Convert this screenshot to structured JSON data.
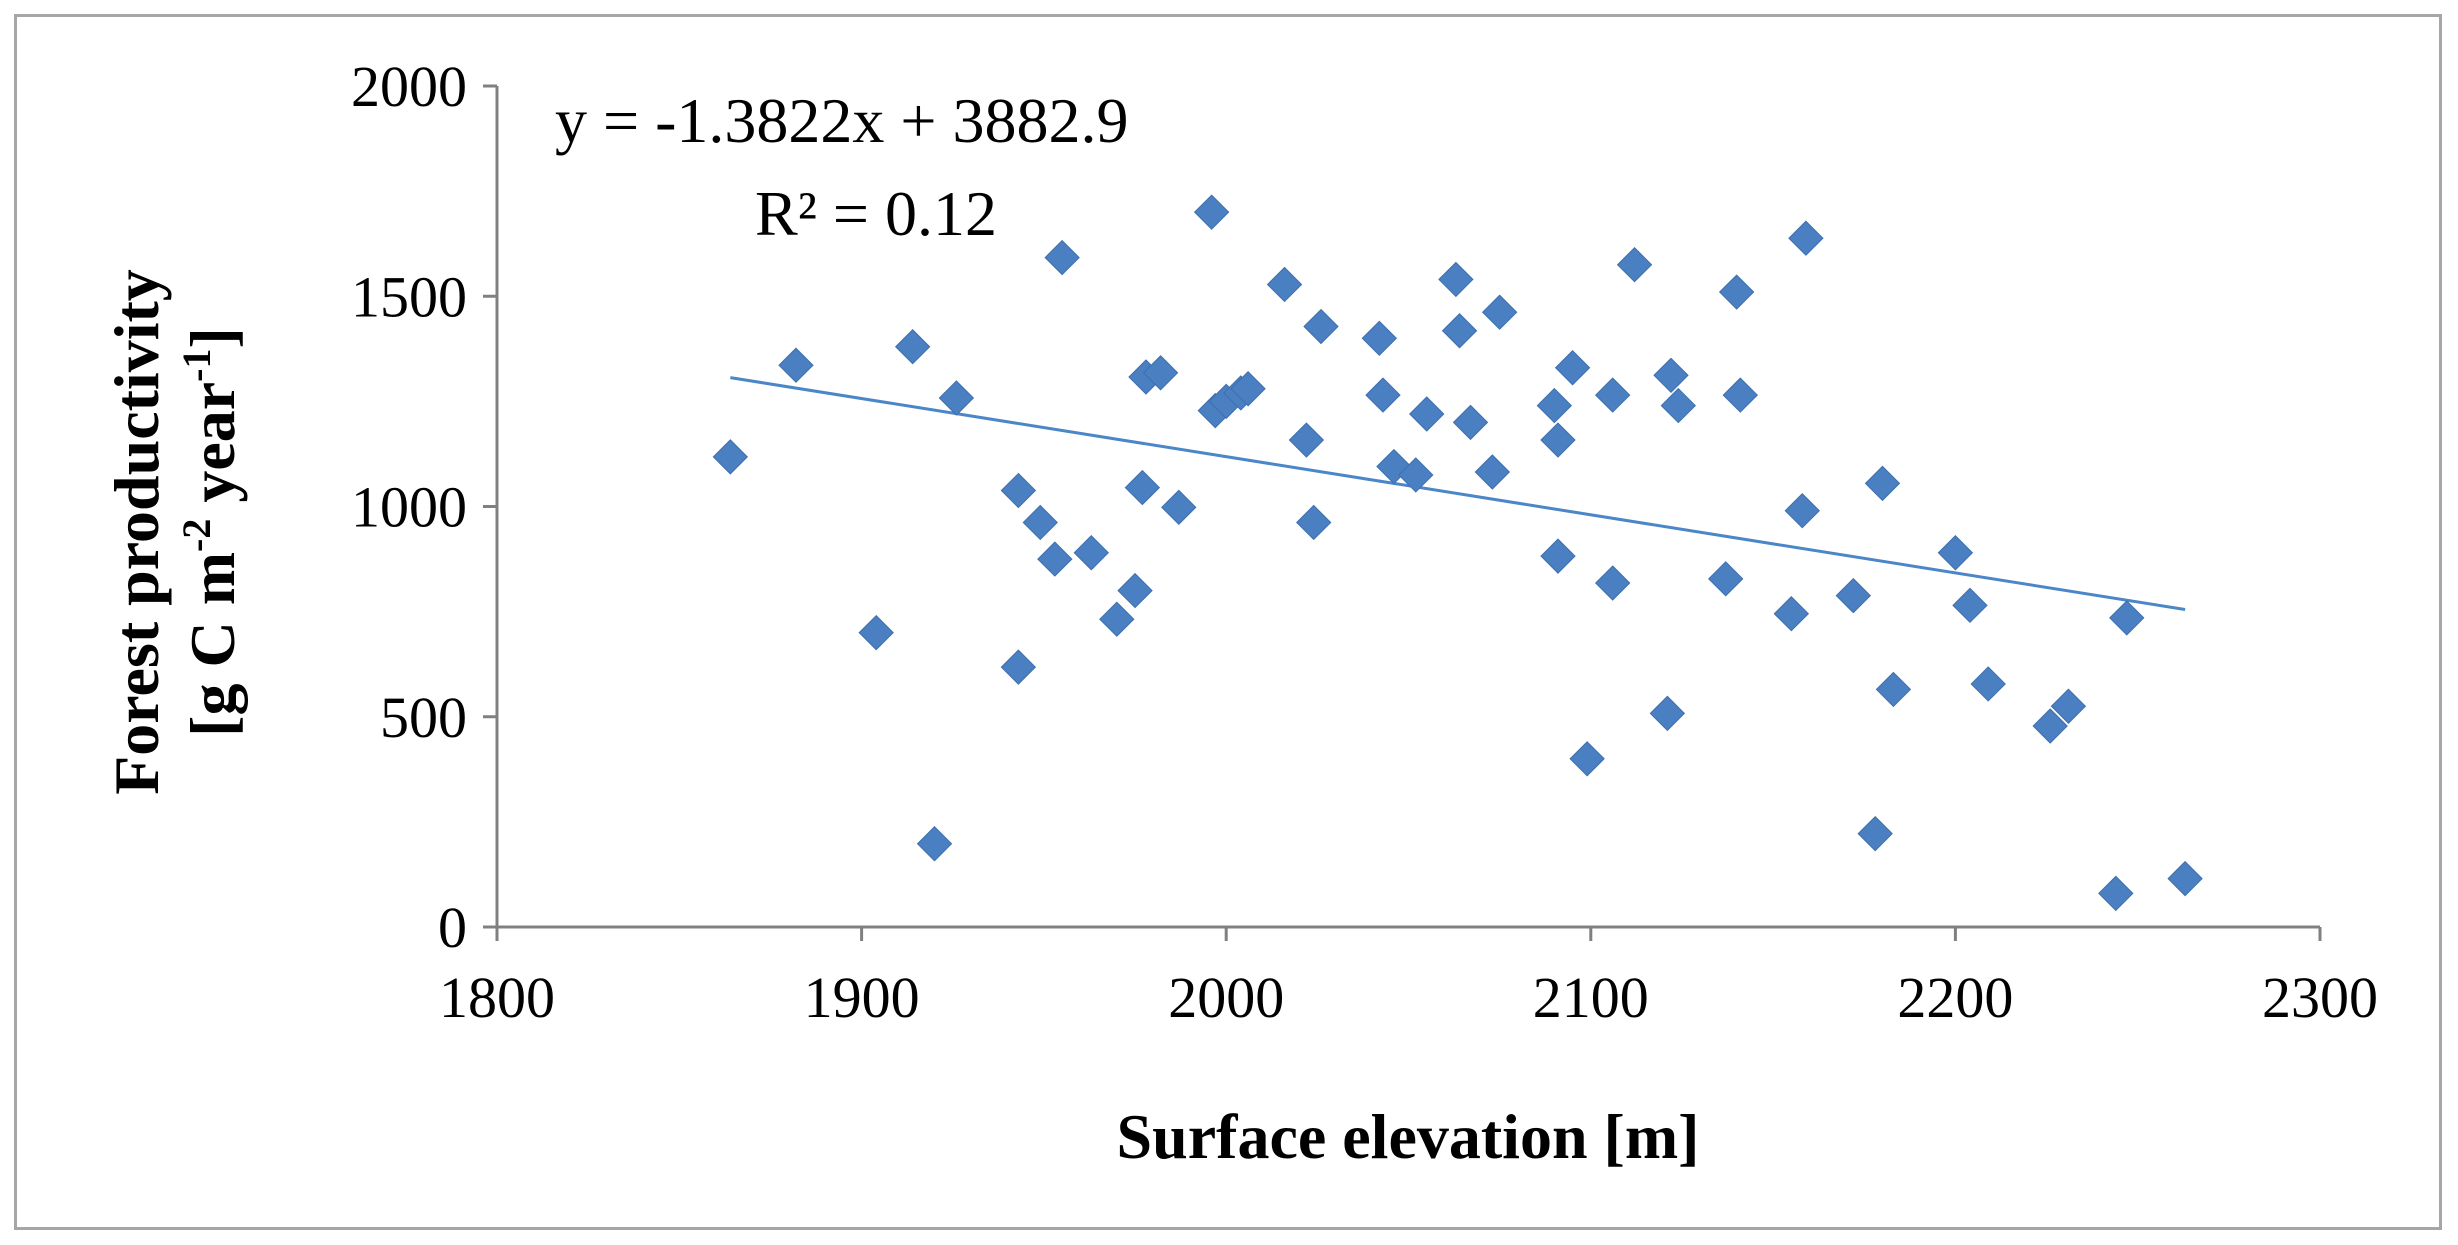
{
  "chart_data": {
    "type": "scatter",
    "title": "",
    "xlabel": "Surface elevation [m]",
    "ylabel_line1": "Forest productivity",
    "ylabel_line2_prefix": "[g C m",
    "ylabel_sup1": "-2",
    "ylabel_mid": " year",
    "ylabel_sup2": "-1",
    "ylabel_suffix": "]",
    "xlim": [
      1800,
      2300
    ],
    "ylim": [
      0,
      2000
    ],
    "xticks": [
      1800,
      1900,
      2000,
      2100,
      2200,
      2300
    ],
    "yticks": [
      0,
      500,
      1000,
      1500,
      2000
    ],
    "grid": false,
    "trendline": {
      "slope": -1.3822,
      "intercept": 3882.9,
      "x_range": [
        1864,
        2263
      ],
      "equation": "y = -1.3822x + 3882.9",
      "r2_label": "R² = 0.12"
    },
    "marker_color": "#4a7fc1",
    "line_color": "#4a86c8",
    "points": [
      [
        1864,
        1118
      ],
      [
        1882,
        1336
      ],
      [
        1904,
        700
      ],
      [
        1914,
        1380
      ],
      [
        1920,
        198
      ],
      [
        1926,
        1258
      ],
      [
        1943,
        1038
      ],
      [
        1943,
        618
      ],
      [
        1949,
        962
      ],
      [
        1953,
        875
      ],
      [
        1955,
        1592
      ],
      [
        1963,
        890
      ],
      [
        1970,
        732
      ],
      [
        1975,
        800
      ],
      [
        1977,
        1045
      ],
      [
        1978,
        1308
      ],
      [
        1982,
        1318
      ],
      [
        1987,
        998
      ],
      [
        1996,
        1700
      ],
      [
        1997,
        1228
      ],
      [
        2000,
        1250
      ],
      [
        2004,
        1270
      ],
      [
        2006,
        1280
      ],
      [
        2016,
        1528
      ],
      [
        2022,
        1158
      ],
      [
        2024,
        962
      ],
      [
        2026,
        1428
      ],
      [
        2042,
        1400
      ],
      [
        2043,
        1265
      ],
      [
        2046,
        1095
      ],
      [
        2052,
        1075
      ],
      [
        2055,
        1220
      ],
      [
        2063,
        1540
      ],
      [
        2064,
        1418
      ],
      [
        2067,
        1200
      ],
      [
        2073,
        1082
      ],
      [
        2075,
        1462
      ],
      [
        2090,
        1240
      ],
      [
        2091,
        1158
      ],
      [
        2091,
        882
      ],
      [
        2095,
        1330
      ],
      [
        2099,
        400
      ],
      [
        2106,
        1265
      ],
      [
        2106,
        818
      ],
      [
        2112,
        1575
      ],
      [
        2121,
        508
      ],
      [
        2122,
        1312
      ],
      [
        2124,
        1240
      ],
      [
        2137,
        828
      ],
      [
        2140,
        1510
      ],
      [
        2141,
        1265
      ],
      [
        2155,
        745
      ],
      [
        2158,
        990
      ],
      [
        2159,
        1638
      ],
      [
        2172,
        788
      ],
      [
        2178,
        222
      ],
      [
        2180,
        1055
      ],
      [
        2183,
        565
      ],
      [
        2200,
        890
      ],
      [
        2204,
        765
      ],
      [
        2209,
        578
      ],
      [
        2226,
        478
      ],
      [
        2231,
        525
      ],
      [
        2244,
        80
      ],
      [
        2247,
        735
      ],
      [
        2263,
        115
      ]
    ]
  }
}
